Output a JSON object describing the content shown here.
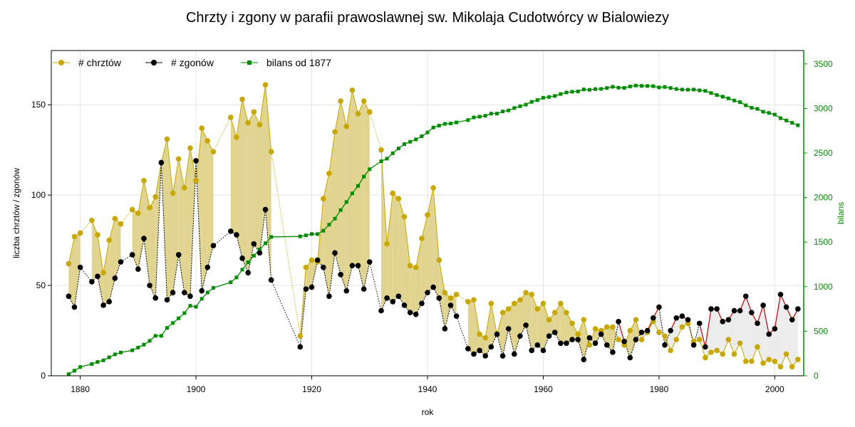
{
  "chart_data": {
    "type": "line",
    "title": "Chrzty i zgony w parafii prawoslawnej sw. Mikolaja Cudotwórcy w Bialowiezy",
    "xlabel": "rok",
    "ylabel": "liczba chrztów / zgonów",
    "y2label": "bilans",
    "xlim": [
      1875,
      2005
    ],
    "ylim": [
      0,
      180
    ],
    "y2lim": [
      0,
      3650
    ],
    "xticks": [
      1880,
      1900,
      1920,
      1940,
      1960,
      1980,
      2000
    ],
    "yticks": [
      0,
      50,
      100,
      150
    ],
    "y2ticks": [
      0,
      500,
      1000,
      1500,
      2000,
      2500,
      3000,
      3500
    ],
    "grid": true,
    "legend_position": "top-left",
    "colors": {
      "baptisms": "#c8a800",
      "deaths": "#000000",
      "balance": "#008c00",
      "surplus_fill": "#e0d490",
      "deficit_fill": "#ececec",
      "deficit_line": "#c00000",
      "right_axis": "#008c00"
    },
    "series": [
      {
        "name": "# chrztów",
        "x": [
          1878,
          1879,
          1880,
          1882,
          1883,
          1884,
          1885,
          1886,
          1887,
          1889,
          1890,
          1891,
          1892,
          1893,
          1894,
          1895,
          1896,
          1897,
          1898,
          1899,
          1900,
          1901,
          1902,
          1903,
          1906,
          1907,
          1908,
          1909,
          1910,
          1911,
          1912,
          1913,
          1918,
          1919,
          1920,
          1921,
          1922,
          1923,
          1924,
          1925,
          1926,
          1927,
          1928,
          1929,
          1930,
          1932,
          1933,
          1934,
          1935,
          1936,
          1937,
          1938,
          1939,
          1940,
          1941,
          1942,
          1943,
          1944,
          1945,
          1947,
          1948,
          1949,
          1950,
          1951,
          1952,
          1953,
          1954,
          1955,
          1956,
          1957,
          1958,
          1959,
          1960,
          1961,
          1962,
          1963,
          1964,
          1965,
          1966,
          1967,
          1968,
          1969,
          1970,
          1971,
          1972,
          1973,
          1974,
          1975,
          1976,
          1977,
          1978,
          1979,
          1980,
          1981,
          1982,
          1983,
          1984,
          1985,
          1986,
          1987,
          1988,
          1989,
          1990,
          1991,
          1992,
          1993,
          1994,
          1995,
          1996,
          1997,
          1998,
          1999,
          2000,
          2001,
          2002,
          2003,
          2004
        ],
        "values": [
          62,
          77,
          79,
          86,
          78,
          57,
          75,
          87,
          84,
          92,
          90,
          108,
          93,
          99,
          118,
          131,
          101,
          120,
          104,
          126,
          108,
          137,
          130,
          124,
          143,
          132,
          153,
          140,
          146,
          139,
          161,
          124,
          22,
          60,
          64,
          63,
          98,
          112,
          135,
          152,
          138,
          158,
          145,
          152,
          146,
          125,
          73,
          101,
          98,
          88,
          61,
          60,
          76,
          89,
          104,
          64,
          46,
          43,
          45,
          41,
          42,
          23,
          21,
          40,
          23,
          35,
          37,
          40,
          42,
          46,
          45,
          37,
          40,
          31,
          35,
          40,
          35,
          29,
          23,
          31,
          17,
          26,
          25,
          27,
          27,
          20,
          17,
          25,
          31,
          20,
          24,
          30,
          24,
          22,
          14,
          20,
          27,
          29,
          19,
          20,
          10,
          13,
          14,
          12,
          20,
          12,
          18,
          8,
          8,
          16,
          7,
          9,
          8,
          5,
          12,
          5,
          9
        ]
      },
      {
        "name": "# zgonów",
        "x": [
          1878,
          1879,
          1880,
          1882,
          1883,
          1884,
          1885,
          1886,
          1887,
          1889,
          1890,
          1891,
          1892,
          1893,
          1894,
          1895,
          1896,
          1897,
          1898,
          1899,
          1900,
          1901,
          1902,
          1903,
          1906,
          1907,
          1908,
          1909,
          1910,
          1911,
          1912,
          1913,
          1918,
          1919,
          1920,
          1921,
          1922,
          1923,
          1924,
          1925,
          1926,
          1927,
          1928,
          1929,
          1930,
          1932,
          1933,
          1934,
          1935,
          1936,
          1937,
          1938,
          1939,
          1940,
          1941,
          1942,
          1943,
          1944,
          1945,
          1947,
          1948,
          1949,
          1950,
          1951,
          1952,
          1953,
          1954,
          1955,
          1956,
          1957,
          1958,
          1959,
          1960,
          1961,
          1962,
          1963,
          1964,
          1965,
          1966,
          1967,
          1968,
          1969,
          1970,
          1971,
          1972,
          1973,
          1974,
          1975,
          1976,
          1977,
          1978,
          1979,
          1980,
          1981,
          1982,
          1983,
          1984,
          1985,
          1986,
          1987,
          1988,
          1989,
          1990,
          1991,
          1992,
          1993,
          1994,
          1995,
          1996,
          1997,
          1998,
          1999,
          2000,
          2001,
          2002,
          2003,
          2004
        ],
        "values": [
          44,
          38,
          60,
          52,
          55,
          39,
          41,
          54,
          63,
          67,
          59,
          76,
          50,
          43,
          118,
          42,
          46,
          67,
          46,
          44,
          119,
          47,
          60,
          72,
          80,
          78,
          65,
          57,
          73,
          68,
          92,
          53,
          16,
          48,
          49,
          64,
          60,
          44,
          68,
          56,
          47,
          61,
          61,
          48,
          63,
          36,
          43,
          41,
          44,
          39,
          35,
          34,
          40,
          46,
          49,
          43,
          26,
          39,
          33,
          15,
          12,
          14,
          11,
          16,
          23,
          11,
          26,
          12,
          22,
          28,
          14,
          17,
          14,
          22,
          24,
          18,
          18,
          20,
          20,
          9,
          21,
          18,
          23,
          17,
          13,
          30,
          19,
          10,
          20,
          24,
          25,
          32,
          38,
          17,
          25,
          32,
          33,
          31,
          17,
          29,
          16,
          37,
          37,
          30,
          31,
          36,
          36,
          44,
          35,
          29,
          39,
          23,
          26,
          45,
          38,
          31,
          37
        ]
      },
      {
        "name": "bilans od 1877",
        "axis": "right",
        "x": [
          1878,
          1879,
          1880,
          1882,
          1883,
          1884,
          1885,
          1886,
          1887,
          1889,
          1890,
          1891,
          1892,
          1893,
          1894,
          1895,
          1896,
          1897,
          1898,
          1899,
          1900,
          1901,
          1902,
          1903,
          1906,
          1907,
          1908,
          1909,
          1910,
          1911,
          1912,
          1913,
          1918,
          1919,
          1920,
          1921,
          1922,
          1923,
          1924,
          1925,
          1926,
          1927,
          1928,
          1929,
          1930,
          1932,
          1933,
          1934,
          1935,
          1936,
          1937,
          1938,
          1939,
          1940,
          1941,
          1942,
          1943,
          1944,
          1945,
          1947,
          1948,
          1949,
          1950,
          1951,
          1952,
          1953,
          1954,
          1955,
          1956,
          1957,
          1958,
          1959,
          1960,
          1961,
          1962,
          1963,
          1964,
          1965,
          1966,
          1967,
          1968,
          1969,
          1970,
          1971,
          1972,
          1973,
          1974,
          1975,
          1976,
          1977,
          1978,
          1979,
          1980,
          1981,
          1982,
          1983,
          1984,
          1985,
          1986,
          1987,
          1988,
          1989,
          1990,
          1991,
          1992,
          1993,
          1994,
          1995,
          1996,
          1997,
          1998,
          1999,
          2000,
          2001,
          2002,
          2003,
          2004
        ],
        "values": [
          18,
          57,
          98,
          132,
          155,
          173,
          207,
          240,
          261,
          286,
          317,
          349,
          392,
          448,
          448,
          537,
          592,
          645,
          703,
          785,
          774,
          864,
          934,
          986,
          1049,
          1103,
          1191,
          1274,
          1347,
          1418,
          1487,
          1558,
          1564,
          1576,
          1591,
          1590,
          1628,
          1696,
          1763,
          1859,
          1950,
          2047,
          2131,
          2235,
          2318,
          2407,
          2437,
          2497,
          2551,
          2600,
          2626,
          2652,
          2688,
          2731,
          2786,
          2807,
          2827,
          2831,
          2843,
          2869,
          2899,
          2908,
          2918,
          2942,
          2942,
          2966,
          2977,
          3005,
          3025,
          3043,
          3074,
          3094,
          3120,
          3129,
          3140,
          3162,
          3179,
          3188,
          3191,
          3213,
          3209,
          3217,
          3219,
          3229,
          3243,
          3233,
          3231,
          3246,
          3257,
          3253,
          3252,
          3250,
          3236,
          3241,
          3230,
          3218,
          3212,
          3210,
          3212,
          3203,
          3197,
          3173,
          3150,
          3132,
          3113,
          3089,
          3071,
          3035,
          3008,
          2995,
          2963,
          2949,
          2931,
          2891,
          2865,
          2839,
          2811
        ]
      }
    ]
  }
}
